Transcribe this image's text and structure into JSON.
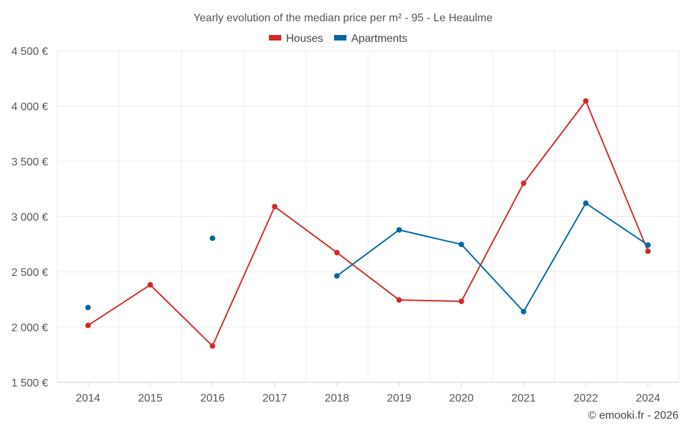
{
  "chart_data": {
    "type": "line",
    "title": "Yearly evolution of the median price per m² - 95 - Le Heaulme",
    "xlabel": "",
    "ylabel": "",
    "categories": [
      "2014",
      "2015",
      "2016",
      "2017",
      "2018",
      "2019",
      "2020",
      "2021",
      "2022",
      "2024"
    ],
    "ylim": [
      1500,
      4500
    ],
    "yticks": [
      1500,
      2000,
      2500,
      3000,
      3500,
      4000,
      4500
    ],
    "ytick_labels": [
      "1 500 €",
      "2 000 €",
      "2 500 €",
      "3 000 €",
      "3 500 €",
      "4 000 €",
      "4 500 €"
    ],
    "grid": true,
    "legend_position": "top-center",
    "series": [
      {
        "name": "Houses",
        "color": "#d62728",
        "values": [
          2015,
          2382,
          1829,
          3090,
          2674,
          2245,
          2233,
          3301,
          4046,
          2686
        ]
      },
      {
        "name": "Apartments",
        "color": "#0066a1",
        "values": [
          2177,
          null,
          2804,
          null,
          2463,
          2879,
          2748,
          2140,
          3121,
          2742
        ]
      }
    ]
  },
  "credit": "© emooki.fr - 2026"
}
